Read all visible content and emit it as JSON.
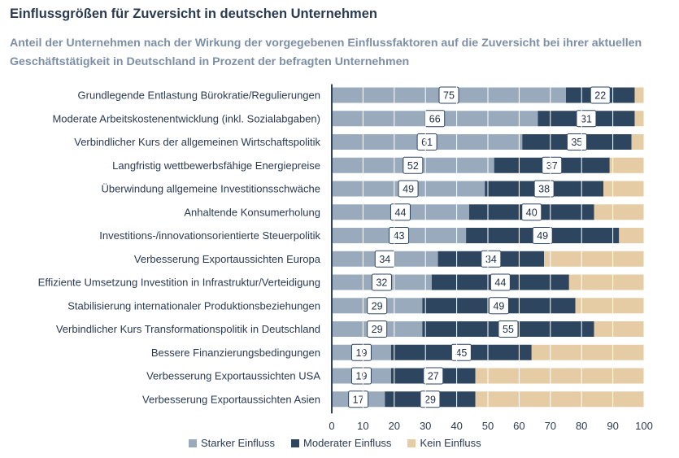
{
  "header": {
    "title": "Einflussgrößen für Zuversicht in deutschen Unternehmen",
    "subtitle": "Anteil der Unternehmen nach der Wirkung der vorgegebenen Einflussfaktoren auf die Zuversicht bei ihrer aktuellen Geschäftstätigkeit in Deutschland in Prozent der befragten Unternehmen"
  },
  "colors": {
    "starker": "#99aabd",
    "moderater": "#2e4560",
    "kein": "#e5cca4",
    "axis": "#2e4560",
    "grid": "#ffffff"
  },
  "legend": [
    {
      "label": "Starker Einfluss",
      "color": "#99aabd"
    },
    {
      "label": "Moderater Einfluss",
      "color": "#2e4560"
    },
    {
      "label": "Kein Einfluss",
      "color": "#e5cca4"
    }
  ],
  "chart_data": {
    "type": "bar",
    "orientation": "horizontal",
    "stacked": true,
    "title": "Einflussgrößen für Zuversicht in deutschen Unternehmen",
    "xlim": [
      0,
      100
    ],
    "xticks": [
      0,
      10,
      20,
      30,
      40,
      50,
      60,
      70,
      80,
      90,
      100
    ],
    "legend_position": "bottom",
    "categories": [
      "Grundlegende Entlastung Bürokratie/Regulierungen",
      "Moderate Arbeitskostenentwicklung (inkl. Sozialabgaben)",
      "Verbindlicher Kurs der allgemeinen Wirtschaftspolitik",
      "Langfristig wettbewerbsfähige Energiepreise",
      "Überwindung allgemeine Investitionsschwäche",
      "Anhaltende Konsumerholung",
      "Investitions-/innovationsorientierte Steuerpolitik",
      "Verbesserung Exportaussichten Europa",
      "Effiziente Umsetzung Investition in Infrastruktur/Verteidigung",
      "Stabilisierung internationaler Produktionsbeziehungen",
      "Verbindlicher Kurs Transformationspolitik in Deutschland",
      "Bessere Finanzierungsbedingungen",
      "Verbesserung Exportaussichten USA",
      "Verbesserung Exportaussichten Asien"
    ],
    "series": [
      {
        "name": "Starker Einfluss",
        "values": [
          75,
          66,
          61,
          52,
          49,
          44,
          43,
          34,
          32,
          29,
          29,
          19,
          19,
          17
        ]
      },
      {
        "name": "Moderater Einfluss",
        "values": [
          22,
          31,
          35,
          37,
          38,
          40,
          49,
          34,
          44,
          49,
          55,
          45,
          27,
          29
        ]
      },
      {
        "name": "Kein Einfluss",
        "values": [
          3,
          3,
          4,
          11,
          13,
          16,
          8,
          32,
          24,
          22,
          16,
          36,
          54,
          54
        ]
      }
    ],
    "labeled_series": [
      "Starker Einfluss",
      "Moderater Einfluss"
    ]
  }
}
